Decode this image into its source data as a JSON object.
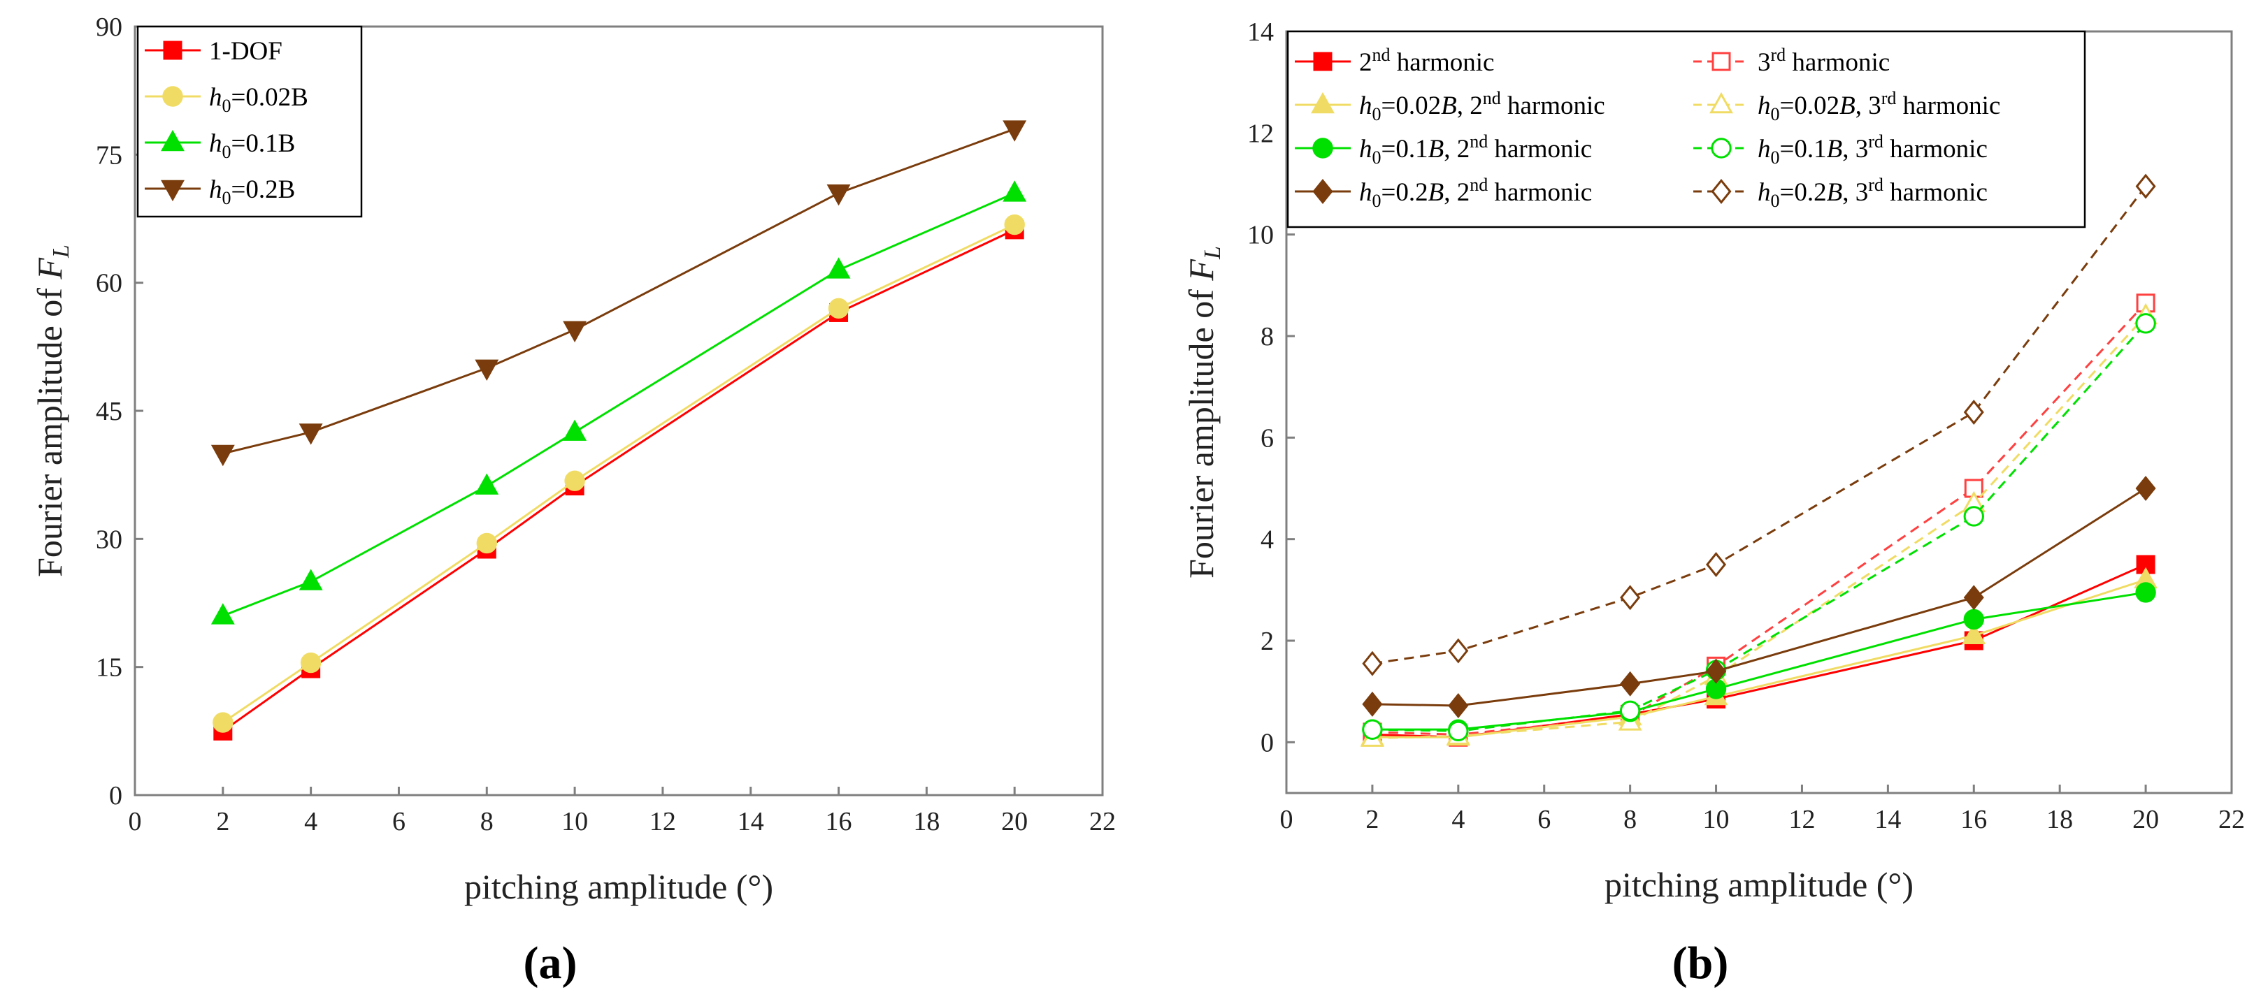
{
  "figure": {
    "panel_a": "(a)",
    "panel_b": "(b)"
  },
  "chart_data": [
    {
      "type": "line",
      "panel": "a",
      "xlabel": "pitching amplitude (°)",
      "ylabel_text": "Fourier amplitude of",
      "ylabel_symbol": "F",
      "ylabel_subscript": "L",
      "xlim": [
        0,
        22
      ],
      "ylim": [
        0,
        90
      ],
      "xticks": [
        0,
        2,
        4,
        6,
        8,
        10,
        12,
        14,
        16,
        18,
        20,
        22
      ],
      "yticks": [
        0,
        15,
        30,
        45,
        60,
        75,
        90
      ],
      "x": [
        2,
        4,
        8,
        10,
        16,
        20
      ],
      "legend_position": "top-left",
      "series": [
        {
          "label": "1-DOF",
          "color": "#ff0000",
          "marker": "square",
          "fill": "filled",
          "dash": "solid",
          "values": [
            7.5,
            14.8,
            28.8,
            36.2,
            56.5,
            66.2
          ]
        },
        {
          "label_var": "h",
          "label_sub": "0",
          "label_rest": "=0.02B",
          "color": "#f0dc64",
          "marker": "circle",
          "fill": "filled",
          "dash": "solid",
          "values": [
            8.5,
            15.5,
            29.5,
            36.8,
            57.0,
            66.8
          ]
        },
        {
          "label_var": "h",
          "label_sub": "0",
          "label_rest": "=0.1B",
          "color": "#00e000",
          "marker": "triangle-up",
          "fill": "filled",
          "dash": "solid",
          "values": [
            21.0,
            25.0,
            36.2,
            42.5,
            61.5,
            70.5
          ]
        },
        {
          "label_var": "h",
          "label_sub": "0",
          "label_rest": "=0.2B",
          "color": "#7a3c0c",
          "marker": "triangle-down",
          "fill": "filled",
          "dash": "solid",
          "values": [
            40.0,
            42.5,
            50.0,
            54.5,
            70.5,
            78.0
          ]
        }
      ]
    },
    {
      "type": "line",
      "panel": "b",
      "xlabel": "pitching amplitude (°)",
      "ylabel_text": "Fourier amplitude of",
      "ylabel_symbol": "F",
      "ylabel_subscript": "L",
      "xlim": [
        0,
        22
      ],
      "ylim": [
        -1,
        14
      ],
      "xticks": [
        0,
        2,
        4,
        6,
        8,
        10,
        12,
        14,
        16,
        18,
        20,
        22
      ],
      "yticks": [
        0,
        2,
        4,
        6,
        8,
        10,
        12,
        14
      ],
      "x": [
        2,
        4,
        8,
        10,
        16,
        20
      ],
      "legend_position": "top-left",
      "series": [
        {
          "label_prefix": "",
          "label_mid": "2",
          "label_sup": "nd",
          "label_tail": " harmonic",
          "color": "#ff0000",
          "marker": "square",
          "fill": "filled",
          "dash": "solid",
          "values": [
            0.15,
            0.1,
            0.55,
            0.85,
            2.0,
            3.5
          ]
        },
        {
          "label_prefix": "",
          "label_mid": "3",
          "label_sup": "rd",
          "label_tail": " harmonic",
          "color": "#ff4040",
          "marker": "square",
          "fill": "open",
          "dash": "dashed",
          "values": [
            0.2,
            0.15,
            0.5,
            1.5,
            5.0,
            8.65
          ]
        },
        {
          "label_prefix": "=0.02B, ",
          "label_mid": "2",
          "label_sup": "nd",
          "label_tail": " harmonic",
          "color": "#f0dc64",
          "marker": "triangle-up",
          "fill": "filled",
          "dash": "solid",
          "values": [
            0.1,
            0.1,
            0.5,
            0.9,
            2.1,
            3.2
          ]
        },
        {
          "label_prefix": "=0.02B, ",
          "label_mid": "3",
          "label_sup": "rd",
          "label_tail": " harmonic",
          "color": "#f0dc64",
          "marker": "triangle-up",
          "fill": "open",
          "dash": "dashed",
          "values": [
            0.08,
            0.12,
            0.4,
            1.3,
            4.7,
            8.4
          ]
        },
        {
          "label_prefix": "=0.1B, ",
          "label_mid": "2",
          "label_sup": "nd",
          "label_tail": " harmonic",
          "color": "#00e000",
          "marker": "circle",
          "fill": "filled",
          "dash": "solid",
          "values": [
            0.25,
            0.25,
            0.6,
            1.05,
            2.42,
            2.95
          ]
        },
        {
          "label_prefix": "=0.1B, ",
          "label_mid": "3",
          "label_sup": "rd",
          "label_tail": " harmonic",
          "color": "#00e000",
          "marker": "circle",
          "fill": "open",
          "dash": "dashed",
          "values": [
            0.25,
            0.22,
            0.62,
            1.42,
            4.45,
            8.25
          ]
        },
        {
          "label_prefix": "=0.2B, ",
          "label_mid": "2",
          "label_sup": "nd",
          "label_tail": " harmonic",
          "color": "#7a3c0c",
          "marker": "diamond",
          "fill": "filled",
          "dash": "solid",
          "values": [
            0.75,
            0.72,
            1.15,
            1.4,
            2.85,
            5.0
          ]
        },
        {
          "label_prefix": "=0.2B, ",
          "label_mid": "3",
          "label_sup": "rd",
          "label_tail": " harmonic",
          "color": "#7a3c0c",
          "marker": "diamond",
          "fill": "open",
          "dash": "dashed",
          "values": [
            1.55,
            1.8,
            2.85,
            3.5,
            6.5,
            10.95
          ]
        }
      ]
    }
  ]
}
